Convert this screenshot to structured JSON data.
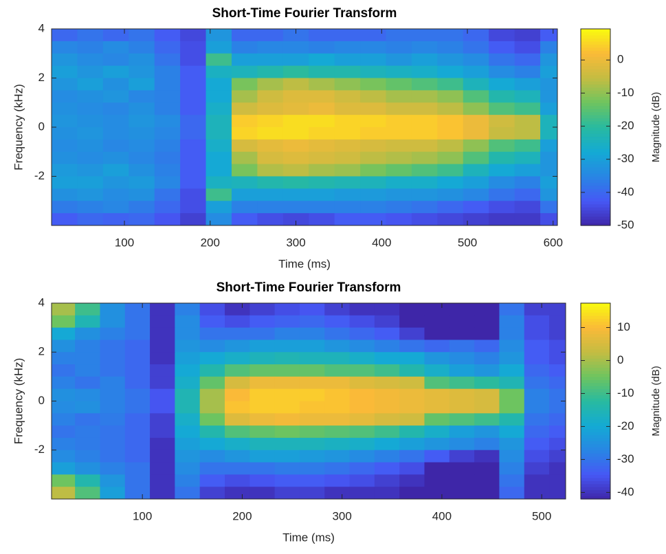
{
  "chart_data": [
    {
      "type": "heatmap",
      "title": "Short-Time Fourier Transform",
      "x_label": "Time (ms)",
      "y_label": "Frequency (kHz)",
      "colorbar_label": "Magnitude (dB)",
      "colormap": "parula",
      "xlim": [
        15,
        605
      ],
      "ylim": [
        -4,
        4
      ],
      "xticks": [
        100,
        200,
        300,
        400,
        500,
        600
      ],
      "yticks": [
        -2,
        0,
        2,
        4
      ],
      "clim": [
        -50,
        9.4
      ],
      "cticks": [
        -50,
        -40,
        -30,
        -20,
        -10,
        0
      ],
      "x": [
        30,
        60,
        90,
        120,
        150,
        180,
        210,
        240,
        270,
        300,
        330,
        360,
        390,
        420,
        450,
        480,
        510,
        540,
        570,
        600
      ],
      "y": [
        3.75,
        3.25,
        2.75,
        2.25,
        1.75,
        1.25,
        0.75,
        0.25,
        -0.25,
        -0.75,
        -1.25,
        -1.75,
        -2.25,
        -2.75,
        -3.25,
        -3.75
      ],
      "z": [
        [
          -40,
          -38,
          -40,
          -38,
          -42,
          -45,
          -32,
          -40,
          -40,
          -38,
          -40,
          -40,
          -40,
          -38,
          -38,
          -38,
          -40,
          -45,
          -46,
          -42
        ],
        [
          -35,
          -36,
          -34,
          -36,
          -40,
          -44,
          -30,
          -36,
          -35,
          -35,
          -36,
          -35,
          -35,
          -36,
          -35,
          -36,
          -38,
          -42,
          -44,
          -36
        ],
        [
          -32,
          -34,
          -35,
          -33,
          -38,
          -44,
          -18,
          -30,
          -30,
          -30,
          -28,
          -30,
          -30,
          -32,
          -30,
          -32,
          -34,
          -38,
          -40,
          -32
        ],
        [
          -30,
          -32,
          -30,
          -32,
          -36,
          -42,
          -25,
          -24,
          -22,
          -20,
          -22,
          -22,
          -24,
          -25,
          -26,
          -28,
          -30,
          -34,
          -36,
          -30
        ],
        [
          -32,
          -30,
          -33,
          -30,
          -36,
          -42,
          -28,
          -12,
          -8,
          -6,
          -8,
          -10,
          -12,
          -14,
          -16,
          -18,
          -24,
          -28,
          -30,
          -32
        ],
        [
          -34,
          -33,
          -32,
          -35,
          -36,
          -42,
          -28,
          -8,
          -4,
          -2,
          -2,
          -4,
          -6,
          -8,
          -8,
          -10,
          -16,
          -22,
          -24,
          -32
        ],
        [
          -33,
          -34,
          -35,
          -33,
          -36,
          -42,
          -26,
          -4,
          -2,
          -1,
          0,
          -2,
          -2,
          -4,
          -4,
          -6,
          -10,
          -16,
          -18,
          -30
        ],
        [
          -32,
          -33,
          -34,
          -32,
          -34,
          -40,
          -24,
          4,
          5,
          6,
          6,
          5,
          5,
          4,
          4,
          3,
          0,
          -4,
          -6,
          -24
        ],
        [
          -33,
          -32,
          -34,
          -33,
          -35,
          -40,
          -24,
          5,
          6,
          6,
          5,
          5,
          4,
          4,
          4,
          3,
          0,
          -5,
          -6,
          -24
        ],
        [
          -34,
          -33,
          -35,
          -34,
          -36,
          -42,
          -26,
          -3,
          -1,
          0,
          -1,
          -2,
          -3,
          -4,
          -4,
          -6,
          -10,
          -16,
          -18,
          -30
        ],
        [
          -33,
          -34,
          -33,
          -35,
          -37,
          -42,
          -28,
          -8,
          -3,
          -2,
          -3,
          -4,
          -6,
          -7,
          -8,
          -10,
          -16,
          -22,
          -24,
          -32
        ],
        [
          -31,
          -32,
          -30,
          -33,
          -36,
          -42,
          -28,
          -12,
          -7,
          -6,
          -8,
          -9,
          -12,
          -14,
          -16,
          -18,
          -24,
          -28,
          -30,
          -32
        ],
        [
          -30,
          -30,
          -32,
          -31,
          -35,
          -42,
          -25,
          -24,
          -22,
          -21,
          -22,
          -23,
          -24,
          -26,
          -26,
          -28,
          -30,
          -34,
          -36,
          -30
        ],
        [
          -33,
          -32,
          -34,
          -33,
          -38,
          -44,
          -18,
          -30,
          -30,
          -30,
          -30,
          -31,
          -31,
          -32,
          -32,
          -33,
          -35,
          -38,
          -40,
          -32
        ],
        [
          -37,
          -36,
          -35,
          -37,
          -40,
          -44,
          -30,
          -36,
          -36,
          -36,
          -36,
          -36,
          -36,
          -37,
          -38,
          -40,
          -42,
          -44,
          -45,
          -38
        ],
        [
          -42,
          -40,
          -41,
          -40,
          -43,
          -46,
          -34,
          -42,
          -44,
          -45,
          -44,
          -42,
          -42,
          -43,
          -44,
          -45,
          -46,
          -47,
          -47,
          -44
        ]
      ]
    },
    {
      "type": "heatmap",
      "title": "Short-Time Fourier Transform",
      "x_label": "Time (ms)",
      "y_label": "Frequency (kHz)",
      "colorbar_label": "Magnitude (dB)",
      "colormap": "parula",
      "xlim": [
        9,
        524
      ],
      "ylim": [
        -4,
        4
      ],
      "xticks": [
        100,
        200,
        300,
        400,
        500
      ],
      "yticks": [
        -2,
        0,
        2,
        4
      ],
      "clim": [
        -42,
        17.4
      ],
      "cticks": [
        -40,
        -30,
        -20,
        -10,
        0,
        10
      ],
      "x": [
        20,
        45,
        70,
        95,
        120,
        145,
        170,
        195,
        220,
        245,
        270,
        295,
        320,
        345,
        370,
        395,
        420,
        445,
        470,
        495,
        520
      ],
      "y": [
        3.75,
        3.25,
        2.75,
        2.25,
        1.75,
        1.25,
        0.75,
        0.25,
        -0.25,
        -0.75,
        -1.25,
        -1.75,
        -2.25,
        -2.75,
        -3.25,
        -3.75
      ],
      "z": [
        [
          0,
          -10,
          -25,
          -30,
          -40,
          -28,
          -36,
          -40,
          -38,
          -36,
          -35,
          -38,
          -40,
          -40,
          -42,
          -42,
          -42,
          -42,
          -30,
          -38,
          -38
        ],
        [
          -5,
          -15,
          -25,
          -30,
          -40,
          -26,
          -34,
          -36,
          -34,
          -33,
          -32,
          -34,
          -36,
          -38,
          -42,
          -42,
          -42,
          -42,
          -28,
          -36,
          -38
        ],
        [
          -20,
          -25,
          -28,
          -30,
          -40,
          -26,
          -30,
          -30,
          -30,
          -28,
          -28,
          -30,
          -32,
          -34,
          -38,
          -42,
          -42,
          -42,
          -28,
          -36,
          -38
        ],
        [
          -25,
          -28,
          -30,
          -32,
          -40,
          -24,
          -26,
          -24,
          -22,
          -22,
          -22,
          -24,
          -26,
          -28,
          -30,
          -32,
          -30,
          -32,
          -26,
          -34,
          -36
        ],
        [
          -28,
          -28,
          -30,
          -32,
          -40,
          -22,
          -20,
          -18,
          -16,
          -15,
          -16,
          -16,
          -18,
          -20,
          -20,
          -24,
          -26,
          -28,
          -24,
          -34,
          -36
        ],
        [
          -30,
          -28,
          -30,
          -32,
          -38,
          -20,
          -14,
          -8,
          -6,
          -6,
          -6,
          -8,
          -8,
          -10,
          -14,
          -18,
          -22,
          -24,
          -20,
          -32,
          -34
        ],
        [
          -28,
          -30,
          -28,
          -32,
          -38,
          -18,
          -6,
          5,
          8,
          8,
          8,
          8,
          6,
          5,
          4,
          -8,
          -10,
          -12,
          -15,
          -30,
          -32
        ],
        [
          -25,
          -26,
          -28,
          -30,
          -35,
          -15,
          0,
          10,
          12,
          12,
          12,
          11,
          10,
          9,
          8,
          7,
          6,
          5,
          -5,
          -28,
          -30
        ],
        [
          -26,
          -25,
          -28,
          -30,
          -35,
          -15,
          0,
          11,
          12,
          12,
          11,
          11,
          10,
          9,
          8,
          7,
          6,
          5,
          -5,
          -28,
          -30
        ],
        [
          -28,
          -30,
          -29,
          -32,
          -38,
          -18,
          -5,
          6,
          8,
          9,
          8,
          8,
          7,
          5,
          4,
          -6,
          -8,
          -10,
          -14,
          -30,
          -32
        ],
        [
          -30,
          -29,
          -30,
          -32,
          -38,
          -20,
          -14,
          -8,
          -6,
          -5,
          -6,
          -7,
          -8,
          -10,
          -14,
          -18,
          -22,
          -24,
          -20,
          -32,
          -34
        ],
        [
          -28,
          -29,
          -30,
          -32,
          -40,
          -22,
          -20,
          -18,
          -16,
          -16,
          -16,
          -17,
          -18,
          -20,
          -22,
          -24,
          -26,
          -28,
          -24,
          -34,
          -36
        ],
        [
          -26,
          -28,
          -30,
          -32,
          -40,
          -24,
          -26,
          -24,
          -22,
          -22,
          -23,
          -24,
          -26,
          -28,
          -30,
          -34,
          -38,
          -40,
          -26,
          -36,
          -38
        ],
        [
          -22,
          -25,
          -28,
          -30,
          -40,
          -26,
          -30,
          -30,
          -30,
          -29,
          -29,
          -30,
          -32,
          -34,
          -36,
          -42,
          -42,
          -42,
          -28,
          -38,
          -40
        ],
        [
          -5,
          -14,
          -24,
          -30,
          -40,
          -28,
          -34,
          -36,
          -35,
          -34,
          -34,
          -35,
          -36,
          -38,
          -40,
          -42,
          -42,
          -42,
          -30,
          -40,
          -40
        ],
        [
          2,
          -8,
          -22,
          -30,
          -40,
          -30,
          -38,
          -40,
          -40,
          -38,
          -38,
          -40,
          -40,
          -40,
          -42,
          -42,
          -42,
          -42,
          -32,
          -40,
          -40
        ]
      ]
    }
  ]
}
